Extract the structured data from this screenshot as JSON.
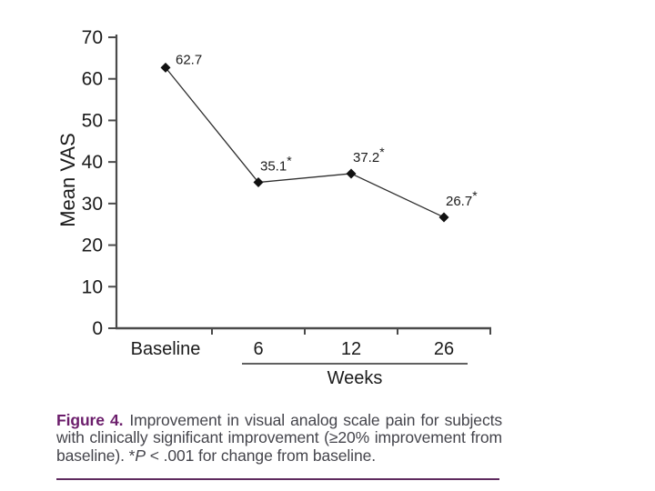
{
  "chart_data": {
    "type": "line",
    "categories": [
      "Baseline",
      "6",
      "12",
      "26"
    ],
    "values": [
      62.7,
      35.1,
      37.2,
      26.7
    ],
    "point_labels": [
      "62.7",
      "35.1",
      "37.2",
      "26.7"
    ],
    "significant": [
      false,
      true,
      true,
      true
    ],
    "significance_marker": "*",
    "title": "",
    "xlabel": "Weeks",
    "ylabel": "Mean VAS",
    "ylim": [
      0,
      70
    ],
    "yticks": [
      0,
      10,
      20,
      30,
      40,
      50,
      60,
      70
    ],
    "grid": false,
    "legend": "none",
    "marker": "diamond",
    "line_color": "#2e2e2e",
    "marker_color": "#111111",
    "axis_color": "#4a4a4a",
    "text_color": "#1b1b1b",
    "xlabel_group": [
      "6",
      "12",
      "26"
    ]
  },
  "caption": {
    "label": "Figure 4.",
    "body": "Improvement in visual analog scale pain for subjects with clinically significant improvement (≥20% improvement from baseline). *",
    "p": "P",
    "tail": " < .001 for change from baseline."
  },
  "colors": {
    "caption_label": "#6b1d6b",
    "caption_text": "#45454c",
    "divider": "#5e2a5e"
  }
}
